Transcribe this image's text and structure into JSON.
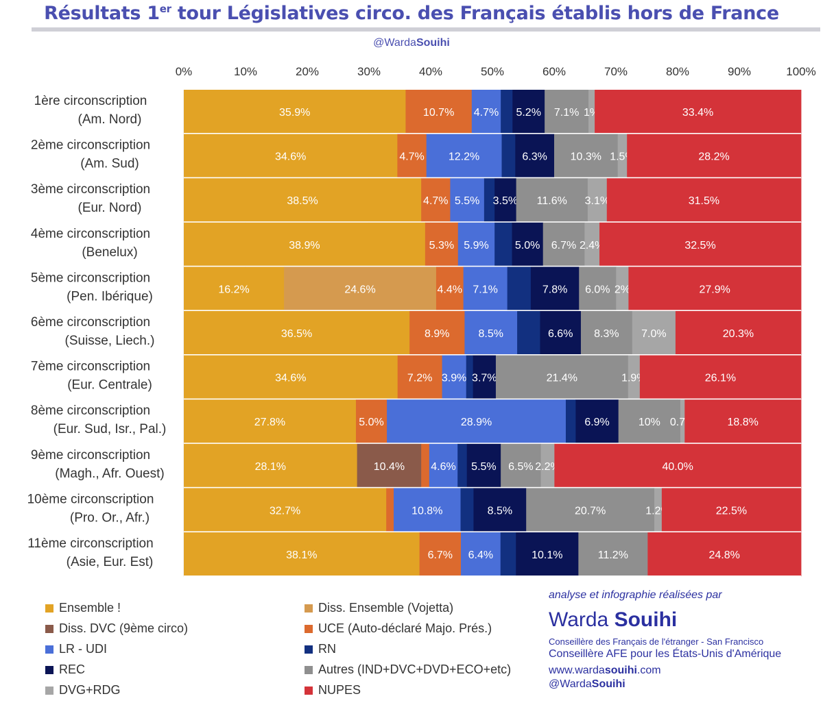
{
  "header": {
    "title_main": "Résultats 1",
    "title_sup": "er",
    "title_rest": " tour Législatives circo. des Français établis hors de France",
    "handle_light": "@Warda",
    "handle_bold": "Souihi"
  },
  "colors": {
    "ens": "#e2a325",
    "diss_vojetta": "#d59a4f",
    "diss_dvc": "#8a5a4a",
    "uce": "#dc6a2e",
    "lr": "#4a6fd8",
    "rn": "#123080",
    "rec": "#0a1455",
    "autres": "#8f8f8f",
    "dvg": "#a6a6a6",
    "nupes": "#d43339",
    "title": "#4a4fb0",
    "credit": "#2b30a0"
  },
  "chart_data": {
    "type": "bar",
    "orientation": "horizontal-stacked-100",
    "x_ticks": [
      "0%",
      "10%",
      "20%",
      "30%",
      "40%",
      "50%",
      "60%",
      "70%",
      "80%",
      "90%",
      "100%"
    ],
    "xlim": [
      0,
      100
    ],
    "categories": [
      [
        "1ère circonscription",
        "(Am. Nord)"
      ],
      [
        "2ème circonscription",
        "(Am. Sud)"
      ],
      [
        "3ème circonscription",
        "(Eur. Nord)"
      ],
      [
        "4ème circonscription",
        "(Benelux)"
      ],
      [
        "5ème circonscription",
        "(Pen. Ibérique)"
      ],
      [
        "6ème circonscription",
        "(Suisse, Liech.)"
      ],
      [
        "7ème circonscription",
        "(Eur. Centrale)"
      ],
      [
        "8ème circonscription",
        "(Eur. Sud, Isr., Pal.)"
      ],
      [
        "9ème circonscription",
        "(Magh., Afr. Ouest)"
      ],
      [
        "10ème circonscription",
        "(Pro. Or., Afr.)"
      ],
      [
        "11ème circonscription",
        "(Asie, Eur. Est)"
      ]
    ],
    "rows": [
      [
        [
          "ens",
          35.9,
          "35.9%"
        ],
        [
          "uce",
          10.7,
          "10.7%"
        ],
        [
          "lr",
          4.7,
          "4.7%"
        ],
        [
          "rn",
          1.9,
          ""
        ],
        [
          "rec",
          5.2,
          "5.2%"
        ],
        [
          "autres",
          7.1,
          "7.1%"
        ],
        [
          "dvg",
          1.0,
          "1%"
        ],
        [
          "nupes",
          33.4,
          "33.4%"
        ]
      ],
      [
        [
          "ens",
          34.6,
          "34.6%"
        ],
        [
          "uce",
          4.7,
          "4.7%"
        ],
        [
          "lr",
          12.2,
          "12.2%"
        ],
        [
          "rn",
          2.2,
          ""
        ],
        [
          "rec",
          6.3,
          "6.3%"
        ],
        [
          "autres",
          10.3,
          "10.3%"
        ],
        [
          "dvg",
          1.5,
          "1.5%"
        ],
        [
          "nupes",
          28.2,
          "28.2%"
        ]
      ],
      [
        [
          "ens",
          38.5,
          "38.5%"
        ],
        [
          "uce",
          4.7,
          "4.7%"
        ],
        [
          "lr",
          5.5,
          "5.5%"
        ],
        [
          "rn",
          1.7,
          ""
        ],
        [
          "rec",
          3.5,
          "3.5%"
        ],
        [
          "autres",
          11.6,
          "11.6%"
        ],
        [
          "dvg",
          3.1,
          "3.1%"
        ],
        [
          "nupes",
          31.5,
          "31.5%"
        ]
      ],
      [
        [
          "ens",
          38.9,
          "38.9%"
        ],
        [
          "uce",
          5.3,
          "5.3%"
        ],
        [
          "lr",
          5.9,
          "5.9%"
        ],
        [
          "rn",
          2.8,
          ""
        ],
        [
          "rec",
          5.0,
          "5.0%"
        ],
        [
          "autres",
          6.7,
          "6.7%"
        ],
        [
          "dvg",
          2.4,
          "2.4%"
        ],
        [
          "nupes",
          32.5,
          "32.5%"
        ]
      ],
      [
        [
          "ens",
          16.2,
          "16.2%"
        ],
        [
          "diss_vojetta",
          24.6,
          "24.6%"
        ],
        [
          "uce",
          4.4,
          "4.4%"
        ],
        [
          "lr",
          7.1,
          "7.1%"
        ],
        [
          "rn",
          3.8,
          ""
        ],
        [
          "rec",
          7.8,
          "7.8%"
        ],
        [
          "autres",
          6.0,
          "6.0%"
        ],
        [
          "dvg",
          2.0,
          "2%"
        ],
        [
          "nupes",
          27.9,
          "27.9%"
        ]
      ],
      [
        [
          "ens",
          36.5,
          "36.5%"
        ],
        [
          "uce",
          8.9,
          "8.9%"
        ],
        [
          "lr",
          8.5,
          "8.5%"
        ],
        [
          "rn",
          3.7,
          ""
        ],
        [
          "rec",
          6.6,
          "6.6%"
        ],
        [
          "autres",
          8.3,
          "8.3%"
        ],
        [
          "dvg",
          7.0,
          "7.0%"
        ],
        [
          "nupes",
          20.3,
          "20.3%"
        ]
      ],
      [
        [
          "ens",
          34.6,
          "34.6%"
        ],
        [
          "uce",
          7.2,
          "7.2%"
        ],
        [
          "lr",
          3.9,
          "3.9%"
        ],
        [
          "rn",
          1.1,
          ""
        ],
        [
          "rec",
          3.7,
          "3.7%"
        ],
        [
          "autres",
          21.4,
          "21.4%"
        ],
        [
          "dvg",
          1.9,
          "1.9%"
        ],
        [
          "nupes",
          26.1,
          "26.1%"
        ]
      ],
      [
        [
          "ens",
          27.8,
          "27.8%"
        ],
        [
          "uce",
          5.0,
          "5.0%"
        ],
        [
          "lr",
          28.9,
          "28.9%"
        ],
        [
          "rn",
          1.6,
          ""
        ],
        [
          "rec",
          6.9,
          "6.9%"
        ],
        [
          "autres",
          10.0,
          "10%"
        ],
        [
          "dvg",
          0.7,
          "0.7%"
        ],
        [
          "nupes",
          18.8,
          "18.8%"
        ]
      ],
      [
        [
          "ens",
          28.1,
          "28.1%"
        ],
        [
          "diss_dvc",
          10.4,
          "10.4%"
        ],
        [
          "uce",
          1.3,
          ""
        ],
        [
          "lr",
          4.6,
          "4.6%"
        ],
        [
          "rn",
          1.5,
          ""
        ],
        [
          "rec",
          5.5,
          "5.5%"
        ],
        [
          "autres",
          6.5,
          "6.5%"
        ],
        [
          "dvg",
          2.2,
          "2.2%"
        ],
        [
          "nupes",
          40.0,
          "40.0%"
        ]
      ],
      [
        [
          "ens",
          32.7,
          "32.7%"
        ],
        [
          "uce",
          1.2,
          ""
        ],
        [
          "lr",
          10.8,
          "10.8%"
        ],
        [
          "rn",
          2.1,
          ""
        ],
        [
          "rec",
          8.5,
          "8.5%"
        ],
        [
          "autres",
          20.7,
          "20.7%"
        ],
        [
          "dvg",
          1.2,
          "1.2%"
        ],
        [
          "nupes",
          22.5,
          "22.5%"
        ]
      ],
      [
        [
          "ens",
          38.1,
          "38.1%"
        ],
        [
          "uce",
          6.7,
          "6.7%"
        ],
        [
          "lr",
          6.4,
          "6.4%"
        ],
        [
          "rn",
          2.5,
          ""
        ],
        [
          "rec",
          10.1,
          "10.1%"
        ],
        [
          "autres",
          11.2,
          "11.2%"
        ],
        [
          "nupes",
          24.8,
          "24.8%"
        ]
      ]
    ],
    "legend": [
      [
        "ens",
        "Ensemble !"
      ],
      [
        "diss_vojetta",
        "Diss. Ensemble (Vojetta)"
      ],
      [
        "diss_dvc",
        "Diss. DVC (9ème circo)"
      ],
      [
        "uce",
        "UCE (Auto-déclaré Majo. Prés.)"
      ],
      [
        "lr",
        "LR - UDI"
      ],
      [
        "rn",
        "RN"
      ],
      [
        "rec",
        "REC"
      ],
      [
        "autres",
        "Autres (IND+DVC+DVD+ECO+etc)"
      ],
      [
        "dvg",
        "DVG+RDG"
      ],
      [
        "nupes",
        "NUPES"
      ]
    ],
    "legend_placement": "bottom-left",
    "grid": true
  },
  "credits": {
    "intro": "analyse et infographie réalisées par",
    "name_first": "Warda ",
    "name_last": "Souihi",
    "line1": "Conseillère des Français de l'étranger - San Francisco",
    "line2": "Conseillère AFE pour les États-Unis d'Amérique",
    "web_a": "www.warda",
    "web_b": "souihi",
    "web_c": ".com",
    "handle_a": "@Warda",
    "handle_b": "Souihi"
  }
}
